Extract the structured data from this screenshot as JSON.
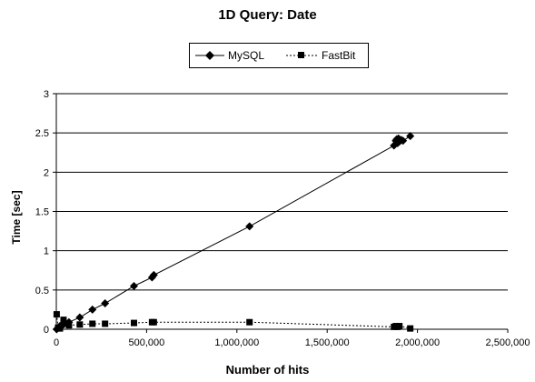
{
  "chart_data": {
    "type": "scatter",
    "title": "1D Query: Date",
    "xlabel": "Number of hits",
    "ylabel": "Time [sec]",
    "xlim": [
      0,
      2500000
    ],
    "ylim": [
      0,
      3
    ],
    "x_ticks": [
      0,
      500000,
      1000000,
      1500000,
      2000000,
      2500000
    ],
    "x_tick_labels": [
      "0",
      "500,000",
      "1,000,000",
      "1,500,000",
      "2,000,000",
      "2,500,000"
    ],
    "y_ticks": [
      0,
      0.5,
      1,
      1.5,
      2,
      2.5,
      3
    ],
    "y_tick_labels": [
      "0",
      "0.5",
      "1",
      "1.5",
      "2",
      "2.5",
      "3"
    ],
    "grid": "horizontal",
    "legend_position": "top-center",
    "series": [
      {
        "name": "MySQL",
        "marker": "diamond",
        "line": "solid",
        "color": "#000000",
        "x": [
          2000,
          10000,
          20000,
          40000,
          70000,
          130000,
          200000,
          270000,
          430000,
          530000,
          540000,
          1070000,
          1870000,
          1880000,
          1885000,
          1890000,
          1895000,
          1900000,
          1910000,
          1920000,
          1960000
        ],
        "y": [
          0.0,
          0.02,
          0.04,
          0.06,
          0.09,
          0.15,
          0.25,
          0.33,
          0.55,
          0.66,
          0.69,
          1.31,
          2.34,
          2.4,
          2.42,
          2.37,
          2.43,
          2.39,
          2.41,
          2.4,
          2.46
        ]
      },
      {
        "name": "FastBit",
        "marker": "square",
        "line": "dotted",
        "color": "#000000",
        "x": [
          2000,
          10000,
          20000,
          40000,
          70000,
          130000,
          200000,
          270000,
          430000,
          530000,
          540000,
          1070000,
          1870000,
          1880000,
          1890000,
          1900000,
          1960000
        ],
        "y": [
          0.19,
          0.02,
          0.01,
          0.12,
          0.05,
          0.06,
          0.07,
          0.07,
          0.08,
          0.09,
          0.09,
          0.09,
          0.03,
          0.04,
          0.03,
          0.04,
          0.01
        ]
      }
    ]
  }
}
